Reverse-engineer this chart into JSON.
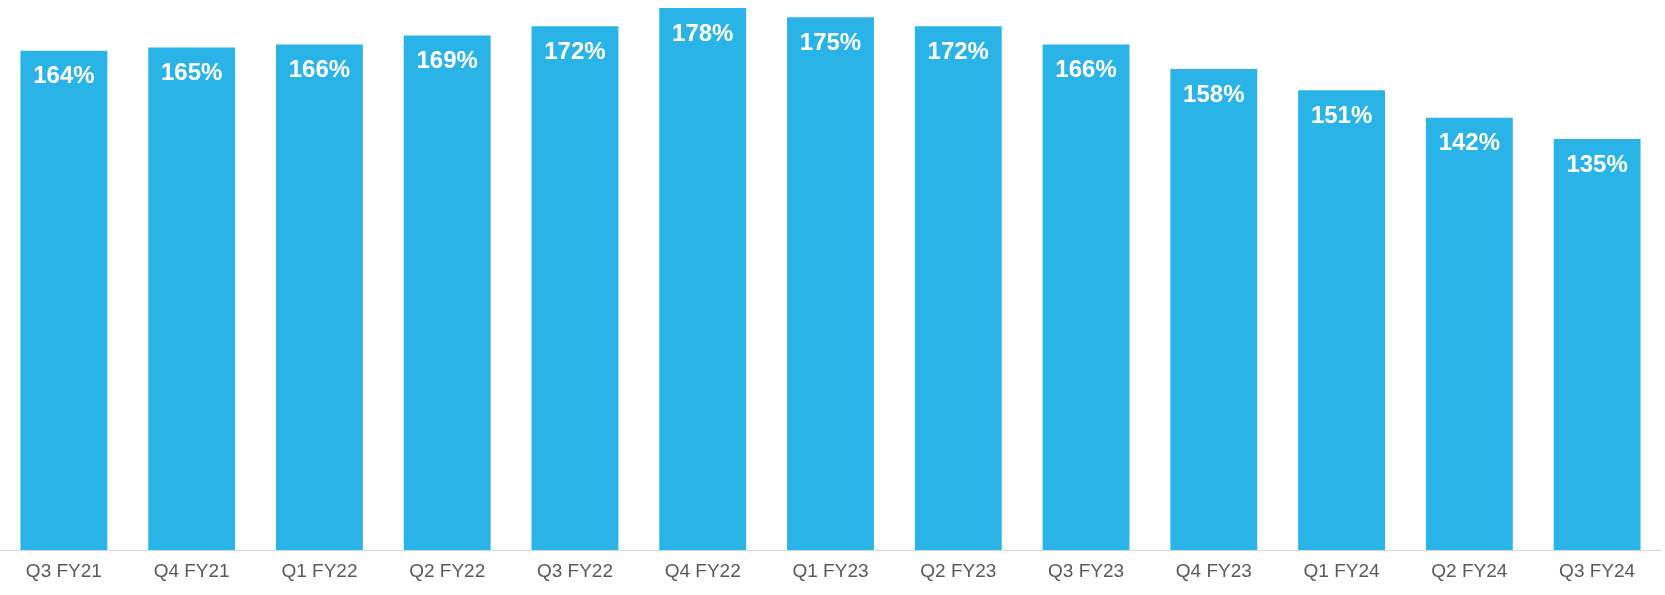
{
  "chart_data": {
    "type": "bar",
    "categories": [
      "Q3 FY21",
      "Q4 FY21",
      "Q1 FY22",
      "Q2 FY22",
      "Q3 FY22",
      "Q4 FY22",
      "Q1 FY23",
      "Q2 FY23",
      "Q3 FY23",
      "Q4 FY23",
      "Q1 FY24",
      "Q2 FY24",
      "Q3 FY24"
    ],
    "values": [
      164,
      165,
      166,
      169,
      172,
      178,
      175,
      172,
      166,
      158,
      151,
      142,
      135
    ],
    "value_labels": [
      "164%",
      "165%",
      "166%",
      "169%",
      "172%",
      "178%",
      "175%",
      "172%",
      "166%",
      "158%",
      "151%",
      "142%",
      "135%"
    ],
    "color": "#29b3e7",
    "grid": false,
    "legend": false,
    "tick_labels": "x"
  }
}
